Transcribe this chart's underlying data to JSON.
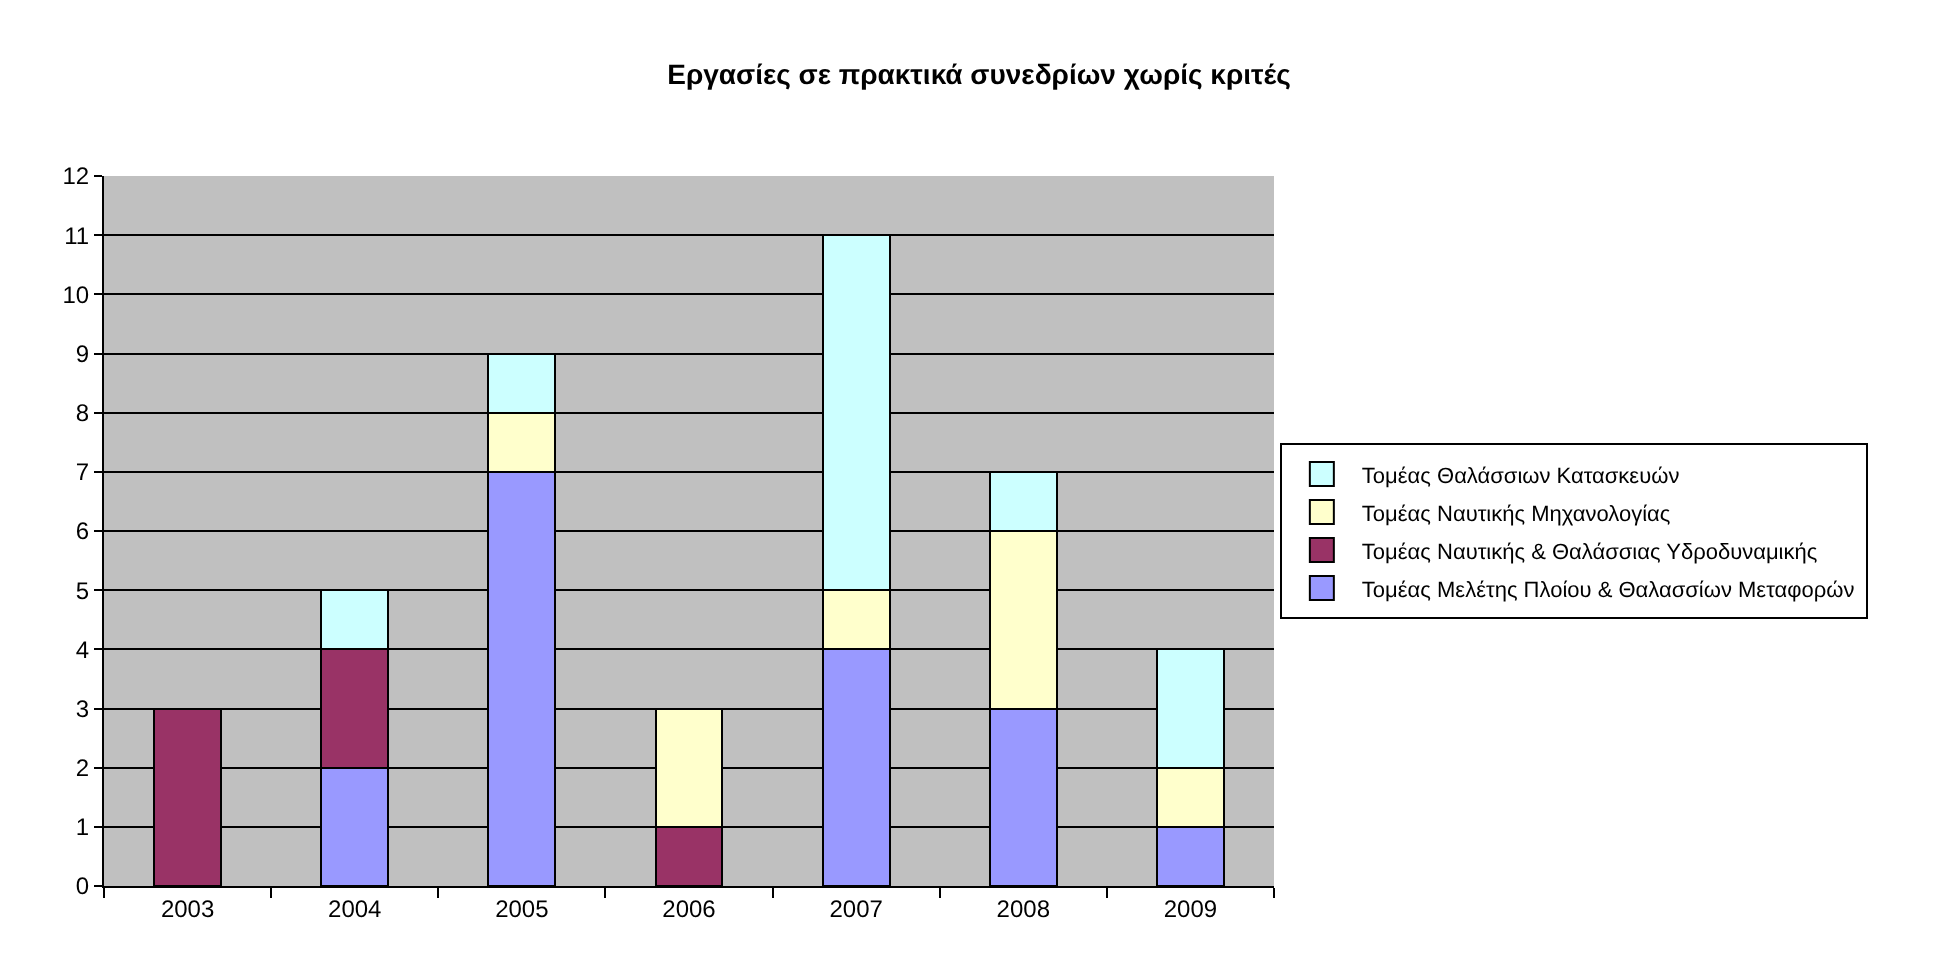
{
  "chart_data": {
    "type": "bar",
    "title": "Εργασίες σε πρακτικά συνεδρίων χωρίς κριτές",
    "stacked": true,
    "categories": [
      "2003",
      "2004",
      "2005",
      "2006",
      "2007",
      "2008",
      "2009"
    ],
    "series": [
      {
        "name": "Τομέας Μελέτης Πλοίου & Θαλασσίων Μεταφορών",
        "color": "#9999ff",
        "values": [
          null,
          2,
          7,
          null,
          4,
          3,
          1
        ]
      },
      {
        "name": "Τομέας Ναυτικής & Θαλάσσιας Υδροδυναμικής",
        "color": "#993366",
        "values": [
          3,
          2,
          null,
          1,
          null,
          null,
          null
        ]
      },
      {
        "name": "Τομέας Ναυτικής Μηχανολογίας",
        "color": "#ffffcc",
        "values": [
          null,
          null,
          1,
          2,
          1,
          3,
          1
        ]
      },
      {
        "name": "Τομέας Θαλάσσιων Κατασκευών",
        "color": "#ccffff",
        "values": [
          null,
          1,
          1,
          null,
          6,
          1,
          2
        ]
      }
    ],
    "ylim": [
      0,
      12
    ],
    "yticks": [
      0,
      1,
      2,
      3,
      4,
      5,
      6,
      7,
      8,
      9,
      10,
      11,
      12
    ],
    "grid": "y",
    "legend": "right"
  }
}
